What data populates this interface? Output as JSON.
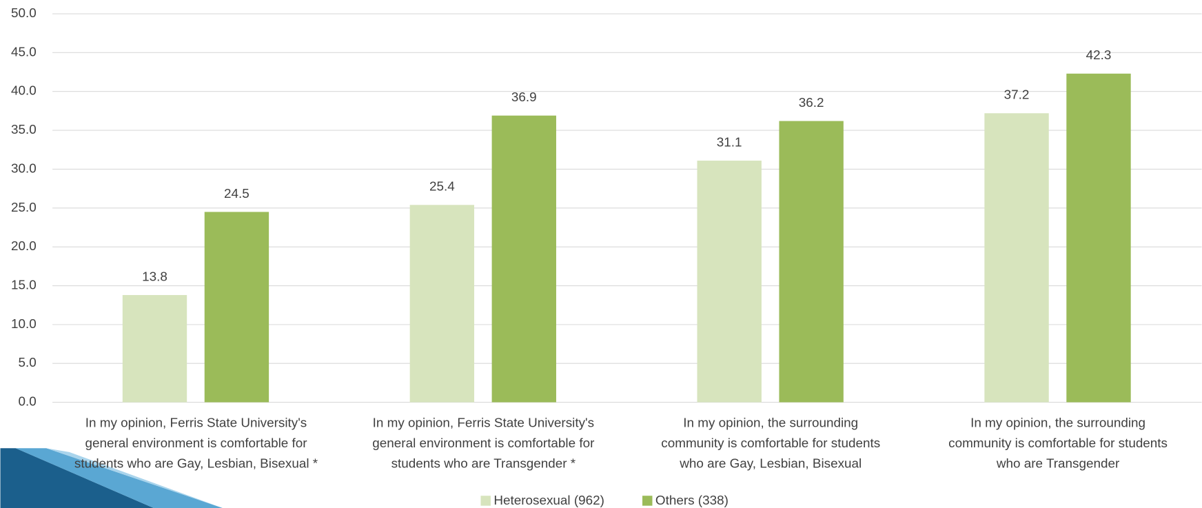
{
  "chart_data": {
    "type": "bar",
    "categories": [
      [
        "In my opinion, Ferris State University's",
        "general environment is comfortable for",
        "students who are Gay, Lesbian, Bisexual *"
      ],
      [
        "In my opinion, Ferris State University's",
        "general environment is comfortable for",
        "students who are Transgender *"
      ],
      [
        "In my opinion, the surrounding",
        "community is comfortable for students",
        "who are Gay, Lesbian, Bisexual"
      ],
      [
        "In my opinion, the surrounding",
        "community is comfortable for students",
        "who are Transgender"
      ]
    ],
    "series": [
      {
        "name": "Heterosexual (962)",
        "color": "#d7e4bd",
        "values": [
          13.8,
          25.4,
          31.1,
          37.2
        ]
      },
      {
        "name": "Others (338)",
        "color": "#9bbb59",
        "values": [
          24.5,
          36.9,
          36.2,
          42.3
        ]
      }
    ],
    "ylim": [
      0,
      50
    ],
    "yticks": [
      {
        "value": 0,
        "label": "0.0"
      },
      {
        "value": 5,
        "label": "5.0"
      },
      {
        "value": 10,
        "label": "10.0"
      },
      {
        "value": 15,
        "label": "15.0"
      },
      {
        "value": 20,
        "label": "20.0"
      },
      {
        "value": 25,
        "label": "25.0"
      },
      {
        "value": 30,
        "label": "30.0"
      },
      {
        "value": 35,
        "label": "35.0"
      },
      {
        "value": 40,
        "label": "40.0"
      },
      {
        "value": 45,
        "label": "45.0"
      },
      {
        "value": 50,
        "label": "50.0"
      }
    ],
    "grid": true,
    "legend": "bottom"
  }
}
